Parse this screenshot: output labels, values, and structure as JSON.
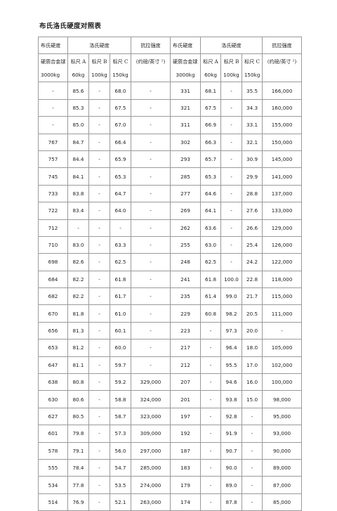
{
  "title": "布氏洛氏硬度对照表",
  "header": {
    "brinell": "布氏硬度",
    "rockwell": "洛氏硬度",
    "tensile": "抗拉强度",
    "ball": "硬质合金球",
    "scaleA": "标尺 A",
    "scaleB": "标尺 B",
    "scaleC": "标尺 C",
    "tensileUnit": "(约磅/英寸 ²)",
    "load3000": "3000kg",
    "load60": "60kg",
    "load100": "100kg",
    "load150": "150kg"
  },
  "rows": [
    [
      "-",
      "85.6",
      "-",
      "68.0",
      "-",
      "331",
      "68.1",
      "-",
      "35.5",
      "166,000"
    ],
    [
      "-",
      "85.3",
      "-",
      "67.5",
      "-",
      "321",
      "67.5",
      "-",
      "34.3",
      "160,000"
    ],
    [
      "-",
      "85.0",
      "-",
      "67.0",
      "-",
      "311",
      "66.9",
      "-",
      "33.1",
      "155,000"
    ],
    [
      "767",
      "84.7",
      "-",
      "66.4",
      "-",
      "302",
      "66.3",
      "-",
      "32.1",
      "150,000"
    ],
    [
      "757",
      "84.4",
      "-",
      "65.9",
      "-",
      "293",
      "65.7",
      "-",
      "30.9",
      "145,000"
    ],
    [
      "745",
      "84.1",
      "-",
      "65.3",
      "-",
      "285",
      "65.3",
      "-",
      "29.9",
      "141,000"
    ],
    [
      "733",
      "83.8",
      "-",
      "64.7",
      "-",
      "277",
      "64.6",
      "-",
      "28.8",
      "137,000"
    ],
    [
      "722",
      "83.4",
      "-",
      "64.0",
      "-",
      "269",
      "64.1",
      "-",
      "27.6",
      "133,000"
    ],
    [
      "712",
      "-",
      "-",
      "-",
      "-",
      "262",
      "63.6",
      "-",
      "26.6",
      "129,000"
    ],
    [
      "710",
      "83.0",
      "-",
      "63.3",
      "-",
      "255",
      "63.0",
      "-",
      "25.4",
      "126,000"
    ],
    [
      "698",
      "82.6",
      "-",
      "62.5",
      "-",
      "248",
      "62.5",
      "-",
      "24.2",
      "122,000"
    ],
    [
      "684",
      "82.2",
      "-",
      "61.8",
      "-",
      "241",
      "61.8",
      "100.0",
      "22.8",
      "118,000"
    ],
    [
      "682",
      "82.2",
      "-",
      "61.7",
      "-",
      "235",
      "61.4",
      "99.0",
      "21.7",
      "115,000"
    ],
    [
      "670",
      "81.8",
      "-",
      "61.0",
      "-",
      "229",
      "60.8",
      "98.2",
      "20.5",
      "111,000"
    ],
    [
      "656",
      "81.3",
      "-",
      "60.1",
      "-",
      "223",
      "-",
      "97.3",
      "20.0",
      "-"
    ],
    [
      "653",
      "81.2",
      "-",
      "60.0",
      "-",
      "217",
      "-",
      "96.4",
      "18.0",
      "105,000"
    ],
    [
      "647",
      "81.1",
      "-",
      "59.7",
      "-",
      "212",
      "-",
      "95.5",
      "17.0",
      "102,000"
    ],
    [
      "638",
      "80.8",
      "-",
      "59.2",
      "329,000",
      "207",
      "-",
      "94.6",
      "16.0",
      "100,000"
    ],
    [
      "630",
      "80.6",
      "-",
      "58.8",
      "324,000",
      "201",
      "-",
      "93.8",
      "15.0",
      "98,000"
    ],
    [
      "627",
      "80.5",
      "-",
      "58.7",
      "323,000",
      "197",
      "-",
      "92.8",
      "-",
      "95,000"
    ],
    [
      "601",
      "79.8",
      "-",
      "57.3",
      "309,000",
      "192",
      "-",
      "91.9",
      "-",
      "93,000"
    ],
    [
      "578",
      "79.1",
      "-",
      "56.0",
      "297,000",
      "187",
      "-",
      "90.7",
      "-",
      "90,000"
    ],
    [
      "555",
      "78.4",
      "-",
      "54.7",
      "285,000",
      "183",
      "-",
      "90.0",
      "-",
      "89,000"
    ],
    [
      "534",
      "77.8",
      "-",
      "53.5",
      "274,000",
      "179",
      "-",
      "89.0",
      "-",
      "87,000"
    ],
    [
      "514",
      "76.9",
      "-",
      "52.1",
      "263,000",
      "174",
      "-",
      "87.8",
      "-",
      "85,000"
    ]
  ]
}
